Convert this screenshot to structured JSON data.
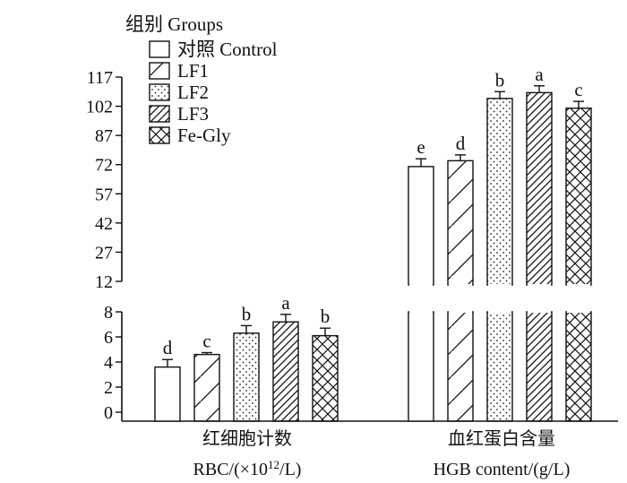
{
  "chart_data": {
    "type": "bar",
    "legend": {
      "title": "组别 Groups",
      "placement": "top-left",
      "entries": [
        "对照 Control",
        "LF1",
        "LF2",
        "LF3",
        "Fe-Gly"
      ]
    },
    "categories": [
      {
        "line1": "红细胞计数",
        "line2_prefix": "RBC/(×10",
        "line2_sup": "12",
        "line2_suffix": "/L)"
      },
      {
        "line1": "血红蛋白含量",
        "line2_prefix": "HGB content/(g/L)",
        "line2_sup": "",
        "line2_suffix": ""
      }
    ],
    "series": [
      {
        "name": "对照 Control",
        "pattern": "blank",
        "values": [
          3.6,
          71
        ],
        "errors": [
          0.6,
          4
        ],
        "labels": [
          "d",
          "e"
        ]
      },
      {
        "name": "LF1",
        "pattern": "diag-single",
        "values": [
          4.6,
          74
        ],
        "errors": [
          0.15,
          3
        ],
        "labels": [
          "c",
          "d"
        ]
      },
      {
        "name": "LF2",
        "pattern": "dots",
        "values": [
          6.3,
          106
        ],
        "errors": [
          0.6,
          3.5
        ],
        "labels": [
          "b",
          "b"
        ]
      },
      {
        "name": "LF3",
        "pattern": "diag-dense",
        "values": [
          7.2,
          109
        ],
        "errors": [
          0.6,
          3.5
        ],
        "labels": [
          "a",
          "a"
        ]
      },
      {
        "name": "Fe-Gly",
        "pattern": "cross",
        "values": [
          6.1,
          101
        ],
        "errors": [
          0.6,
          3.5
        ],
        "labels": [
          "b",
          "c"
        ]
      }
    ],
    "axis": {
      "broken": true,
      "lower_segment": {
        "range": [
          0,
          8
        ],
        "ticks": [
          0,
          2,
          4,
          6,
          8
        ]
      },
      "upper_segment": {
        "range": [
          12,
          117
        ],
        "ticks": [
          12,
          27,
          42,
          57,
          72,
          87,
          102,
          117
        ]
      }
    }
  }
}
